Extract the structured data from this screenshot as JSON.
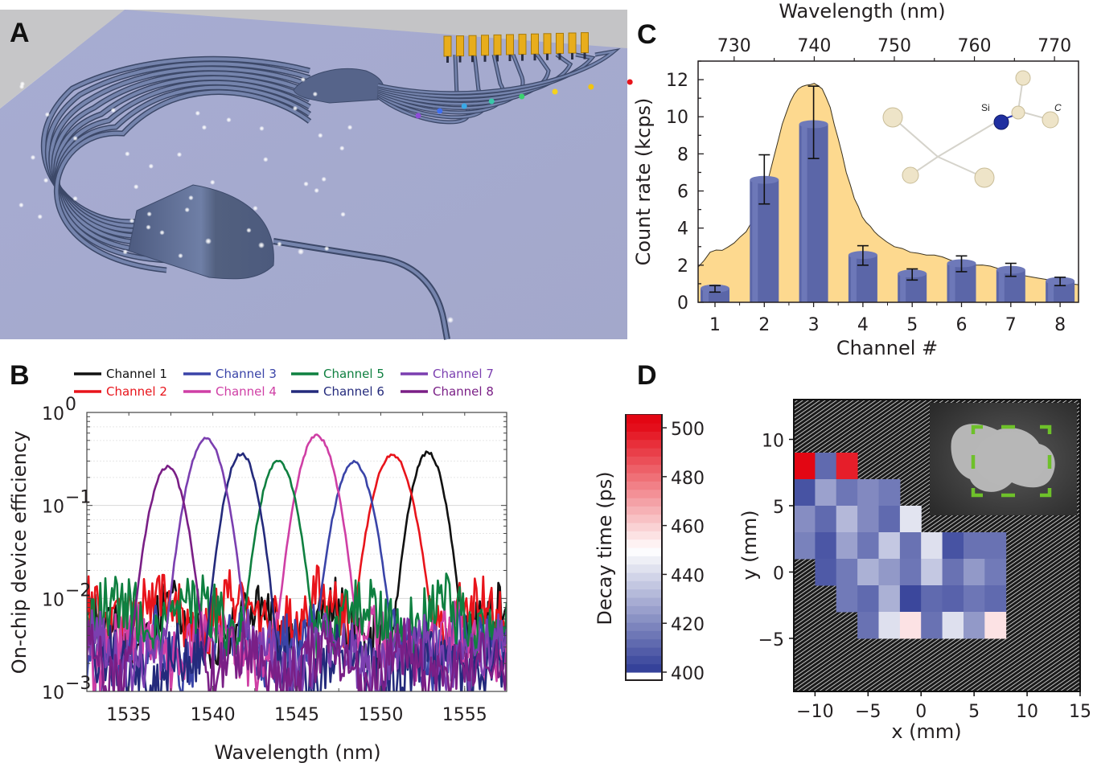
{
  "panels": {
    "A": {
      "letter": "A",
      "description": "3D rendering of on-chip arrayed waveguide grating with 8 output channels terminating in superconducting detectors",
      "num_channels": 8
    },
    "B": {
      "letter": "B"
    },
    "C": {
      "letter": "C"
    },
    "D": {
      "letter": "D"
    }
  },
  "chart_data": [
    {
      "panel": "B",
      "type": "line",
      "title": "",
      "xlabel": "Wavelength (nm)",
      "ylabel": "On-chip device efficiency",
      "xscale": "linear",
      "yscale": "log",
      "xlim": [
        1532.5,
        1557.5
      ],
      "ylim": [
        0.001,
        1
      ],
      "xticks": [
        1535,
        1540,
        1545,
        1550,
        1555
      ],
      "yticks": [
        {
          "value": 1,
          "label_base": "10",
          "label_exp": "0"
        },
        {
          "value": 0.1,
          "label_base": "10",
          "label_exp": "−1"
        },
        {
          "value": 0.01,
          "label_base": "10",
          "label_exp": "−2"
        },
        {
          "value": 0.001,
          "label_base": "10",
          "label_exp": "−3"
        }
      ],
      "grid": true,
      "legend_position": "top (above plot, 4 columns x 2 rows)",
      "series": [
        {
          "name": "Channel 1",
          "color": "#111111",
          "peak_nm": 1552.8,
          "peak_eff": 0.37,
          "fwhm_nm": 1.6,
          "floor": 0.005,
          "floor_seed": 1
        },
        {
          "name": "Channel 2",
          "color": "#e8141b",
          "peak_nm": 1550.7,
          "peak_eff": 0.35,
          "fwhm_nm": 1.9,
          "floor": 0.007,
          "floor_seed": 2
        },
        {
          "name": "Channel 3",
          "color": "#3a44a8",
          "peak_nm": 1548.4,
          "peak_eff": 0.29,
          "fwhm_nm": 1.8,
          "floor": 0.003,
          "floor_seed": 3
        },
        {
          "name": "Channel 4",
          "color": "#cf3fa5",
          "peak_nm": 1546.2,
          "peak_eff": 0.56,
          "fwhm_nm": 1.8,
          "floor": 0.003,
          "floor_seed": 4
        },
        {
          "name": "Channel 5",
          "color": "#0f8040",
          "peak_nm": 1543.9,
          "peak_eff": 0.3,
          "fwhm_nm": 1.7,
          "floor": 0.006,
          "floor_seed": 5
        },
        {
          "name": "Channel 6",
          "color": "#242a7c",
          "peak_nm": 1541.7,
          "peak_eff": 0.36,
          "fwhm_nm": 1.6,
          "floor": 0.0018,
          "floor_seed": 6
        },
        {
          "name": "Channel 7",
          "color": "#7b3fb0",
          "peak_nm": 1539.6,
          "peak_eff": 0.52,
          "fwhm_nm": 1.8,
          "floor": 0.0025,
          "floor_seed": 7
        },
        {
          "name": "Channel 8",
          "color": "#7a1f86",
          "peak_nm": 1537.3,
          "peak_eff": 0.26,
          "fwhm_nm": 1.7,
          "floor": 0.0019,
          "floor_seed": 8
        }
      ]
    },
    {
      "panel": "C",
      "type": "bar",
      "title": "",
      "xlabel": "Channel #",
      "x2label": "Wavelength (nm)",
      "ylabel": "Count rate (kcps)",
      "categories": [
        "1",
        "2",
        "3",
        "4",
        "5",
        "6",
        "7",
        "8"
      ],
      "values": [
        0.75,
        6.6,
        9.6,
        2.55,
        1.55,
        2.1,
        1.75,
        1.15
      ],
      "errors": [
        {
          "low": 0.55,
          "high": 0.9
        },
        {
          "low": 5.3,
          "high": 7.95
        },
        {
          "low": 7.75,
          "high": 11.65
        },
        {
          "low": 2.0,
          "high": 3.05
        },
        {
          "low": 1.2,
          "high": 1.8
        },
        {
          "low": 1.65,
          "high": 2.5
        },
        {
          "low": 1.4,
          "high": 2.1
        },
        {
          "low": 0.9,
          "high": 1.35
        }
      ],
      "ylim": [
        0,
        13
      ],
      "yticks": [
        0,
        2,
        4,
        6,
        8,
        10,
        12
      ],
      "x2lim": [
        725.5,
        773
      ],
      "x2ticks": [
        730,
        740,
        750,
        760,
        770
      ],
      "bar_color": "#5b66a8",
      "spectrum_fill_color": "#fdd98f",
      "spectrum": {
        "name": "SiV photoluminescence spectrum",
        "x_nm": [
          725.5,
          727,
          728.5,
          730,
          731.5,
          733,
          734,
          735,
          736,
          737,
          738,
          739,
          740,
          741,
          742,
          743,
          744,
          745,
          746,
          747,
          748,
          750,
          752,
          754,
          756,
          758,
          760,
          762,
          764,
          766,
          768,
          770,
          773
        ],
        "y_kcps": [
          1.9,
          2.7,
          2.8,
          3.2,
          3.8,
          5.0,
          6.2,
          7.9,
          9.6,
          10.8,
          11.5,
          11.7,
          11.8,
          11.5,
          10.5,
          8.8,
          7.0,
          5.6,
          4.6,
          4.1,
          3.6,
          3.0,
          2.7,
          2.55,
          2.45,
          2.15,
          2.0,
          1.95,
          1.8,
          1.45,
          1.3,
          1.15,
          0.95
        ]
      },
      "inset": {
        "description": "Silicon-vacancy defect molecular structure",
        "label_si": "Si",
        "label_c": "C"
      },
      "grid": false
    },
    {
      "panel": "D",
      "type": "heatmap",
      "title": "",
      "xlabel": "x (mm)",
      "ylabel": "y (mm)",
      "xlim": [
        -12,
        15
      ],
      "ylim": [
        -9,
        13
      ],
      "xticks": [
        -10,
        -5,
        0,
        5,
        10,
        15
      ],
      "yticks": [
        10,
        5,
        0,
        -5
      ],
      "colorbar": {
        "label": "Decay time (ps)",
        "range": [
          398,
          505
        ],
        "ticks": [
          500,
          480,
          460,
          440,
          420,
          400
        ],
        "colormap": "blue-white-red",
        "low_color": "#2e3b96",
        "mid_color": "#ffffff",
        "high_color": "#e30613"
      },
      "cell_size_mm": 2,
      "rows_top_y_mm": [
        9,
        7,
        5,
        3,
        1,
        -1,
        -3
      ],
      "cols_left_x_mm": [
        -12,
        -10,
        -8,
        -6,
        -4,
        -2,
        0,
        2,
        4,
        6
      ],
      "values_ps": [
        [
          502,
          412,
          497,
          null,
          null,
          null,
          null,
          null,
          null,
          null
        ],
        [
          406,
          426,
          415,
          420,
          416,
          null,
          null,
          null,
          null,
          null
        ],
        [
          421,
          412,
          432,
          420,
          412,
          443,
          null,
          null,
          null,
          null
        ],
        [
          418,
          407,
          426,
          415,
          436,
          414,
          442,
          406,
          414,
          414
        ],
        [
          null,
          408,
          416,
          430,
          424,
          415,
          436,
          414,
          424,
          416
        ],
        [
          null,
          null,
          416,
          412,
          430,
          403,
          412,
          410,
          415,
          412
        ],
        [
          null,
          null,
          null,
          414,
          442,
          456,
          414,
          442,
          424,
          456
        ]
      ],
      "background": "hatched (no data)",
      "inset": {
        "description": "Fluorescence camera image of sample with dashed scan region",
        "marker_color": "#6ec12a"
      }
    }
  ]
}
